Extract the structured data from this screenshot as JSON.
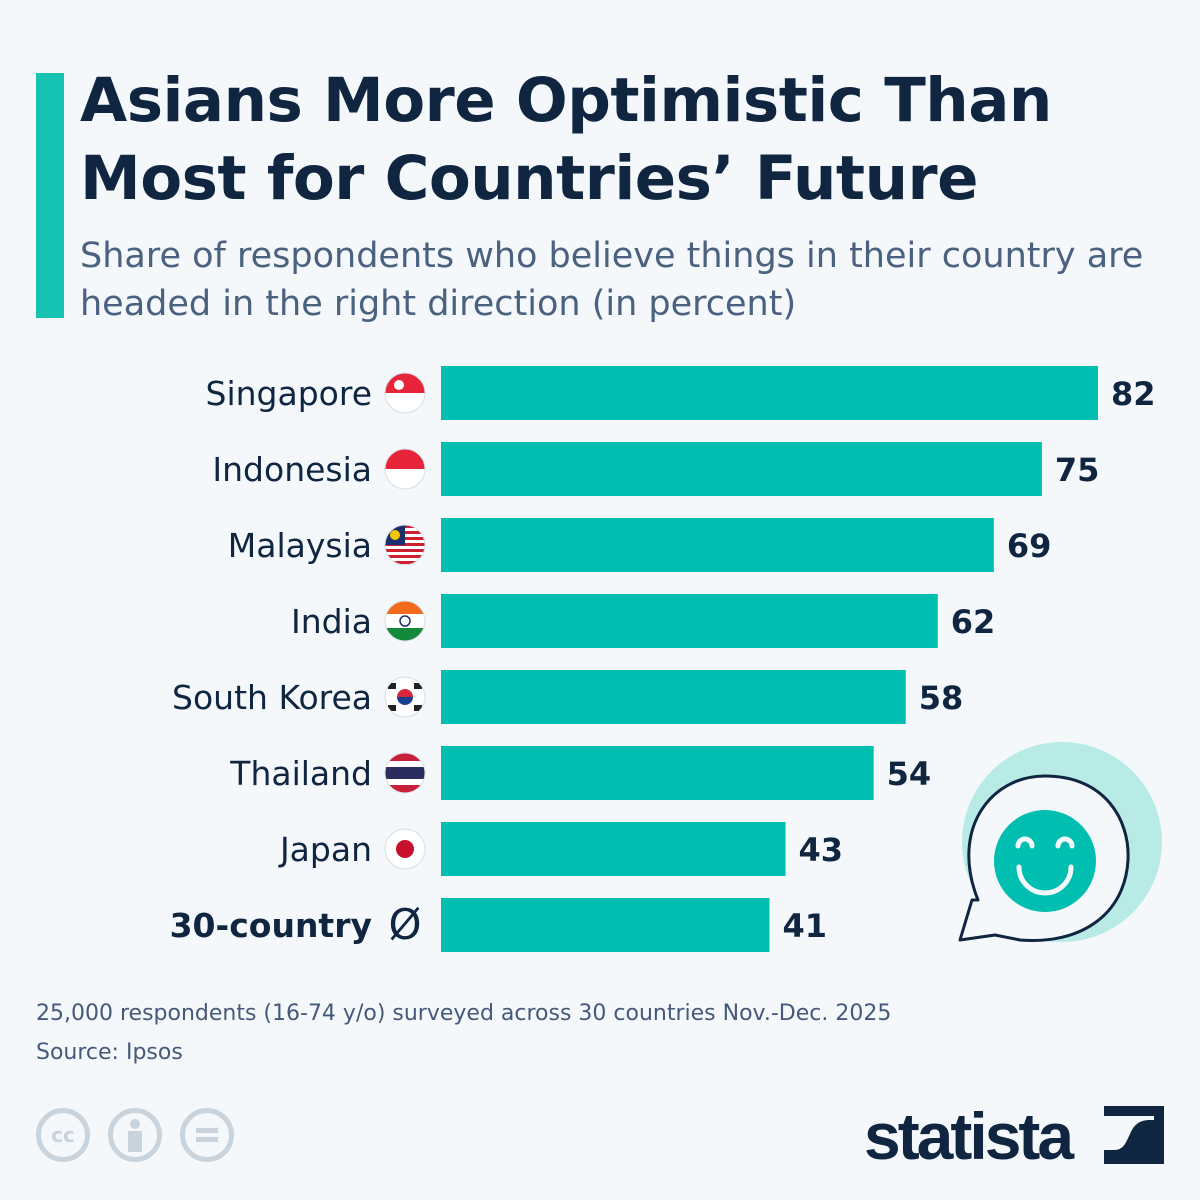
{
  "header": {
    "title": "Asians More Optimistic Than Most for Countries’ Future",
    "subtitle": "Share of respondents who believe things in their country are headed in the right direction (in percent)"
  },
  "colors": {
    "bar": "#00bfb0",
    "title": "#0f2540",
    "accent": "#17c3b2"
  },
  "chart_data": {
    "type": "bar",
    "orientation": "horizontal",
    "categories": [
      "Singapore",
      "Indonesia",
      "Malaysia",
      "India",
      "South Korea",
      "Thailand",
      "Japan",
      "30-country"
    ],
    "category_icons": [
      "flag-singapore",
      "flag-indonesia",
      "flag-malaysia",
      "flag-india",
      "flag-south-korea",
      "flag-thailand",
      "flag-japan",
      "average-symbol"
    ],
    "average_symbol": "Ø",
    "values": [
      82,
      75,
      69,
      62,
      58,
      54,
      43,
      41
    ],
    "data_labels": [
      "82",
      "75",
      "69",
      "62",
      "58",
      "54",
      "43",
      "41"
    ],
    "xlim": [
      0,
      82
    ],
    "grid": false,
    "legend": "none"
  },
  "footer": {
    "note": "25,000 respondents (16-74 y/o) surveyed across 30 countries Nov.-Dec. 2025",
    "source": "Source: Ipsos",
    "license_icons": [
      "cc-icon",
      "attribution-icon",
      "no-derivatives-icon"
    ],
    "cc_text": "cc",
    "brand": "statista"
  }
}
